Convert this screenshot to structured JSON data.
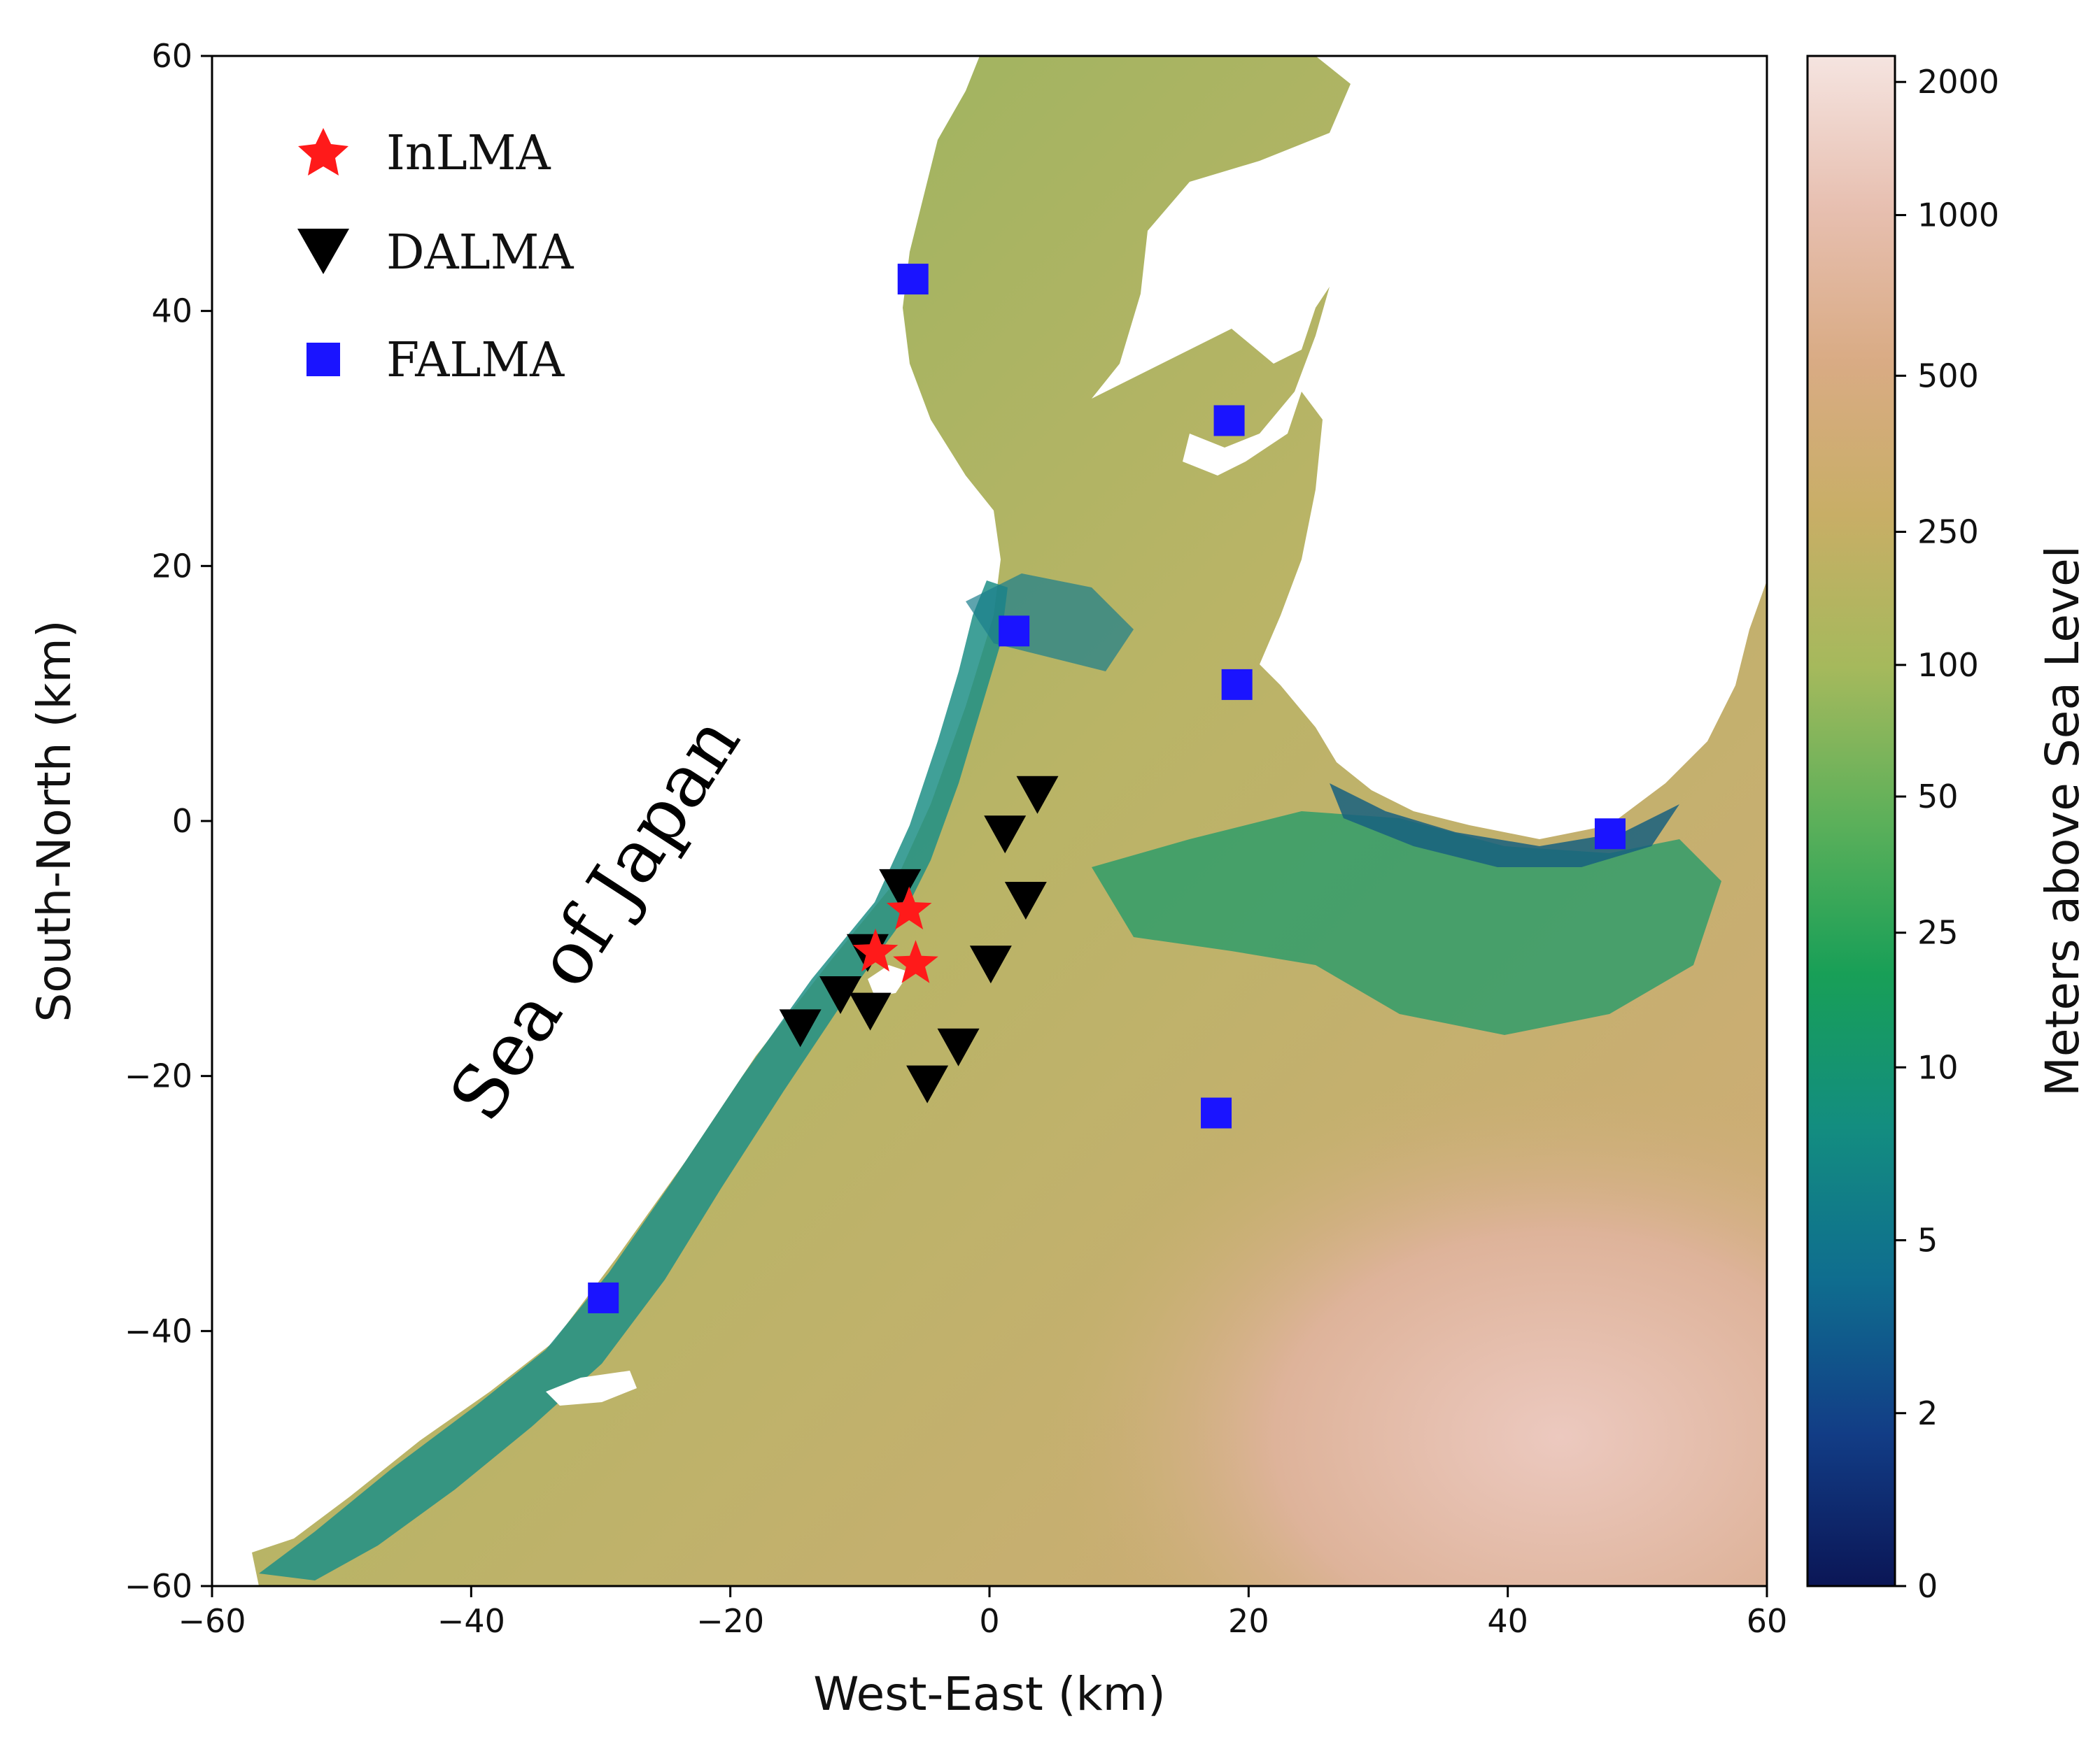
{
  "map": {
    "sea_label": "Sea of Japan",
    "x_axis": {
      "label": "West-East (km)",
      "range": [
        -60,
        60
      ],
      "ticks": [
        "−60",
        "−40",
        "−20",
        "0",
        "20",
        "40",
        "60"
      ]
    },
    "y_axis": {
      "label": "South-North (km)",
      "range": [
        -60,
        60
      ],
      "ticks": [
        "−60",
        "−40",
        "−20",
        "0",
        "20",
        "40",
        "60"
      ]
    },
    "colorbar": {
      "label": "Meters above Sea Level",
      "ticks": [
        "0",
        "2",
        "5",
        "10",
        "25",
        "50",
        "100",
        "250",
        "500",
        "1000",
        "2000"
      ],
      "colors": [
        "#0b1656",
        "#123d86",
        "#0f6d8f",
        "#138d80",
        "#189f57",
        "#5cb05a",
        "#a5b95c",
        "#c8ae66",
        "#d9ab84",
        "#e7bfb0",
        "#f5e4e0"
      ]
    },
    "legend": [
      {
        "label": "InLMA",
        "marker": "star-icon",
        "color": "#ff1a1a"
      },
      {
        "label": "DALMA",
        "marker": "down-triangle-icon",
        "color": "#000000"
      },
      {
        "label": "FALMA",
        "marker": "square-icon",
        "color": "#1a14ff"
      }
    ],
    "stations": {
      "InLMA": [
        [
          -6.2,
          -7.0
        ],
        [
          -8.8,
          -10.3
        ],
        [
          -5.7,
          -11.2
        ]
      ],
      "DALMA": [
        [
          3.7,
          2.1
        ],
        [
          1.2,
          -1.0
        ],
        [
          -6.9,
          -5.2
        ],
        [
          2.8,
          -6.2
        ],
        [
          -9.4,
          -10.3
        ],
        [
          0.1,
          -11.2
        ],
        [
          -11.5,
          -13.6
        ],
        [
          -9.2,
          -14.9
        ],
        [
          -14.6,
          -16.2
        ],
        [
          -2.4,
          -17.7
        ],
        [
          -4.8,
          -20.6
        ]
      ],
      "FALMA": [
        [
          -5.9,
          42.5
        ],
        [
          18.5,
          31.4
        ],
        [
          1.9,
          14.9
        ],
        [
          19.1,
          10.7
        ],
        [
          47.9,
          -1.0
        ],
        [
          17.5,
          -22.9
        ],
        [
          -29.8,
          -37.4
        ]
      ]
    }
  }
}
